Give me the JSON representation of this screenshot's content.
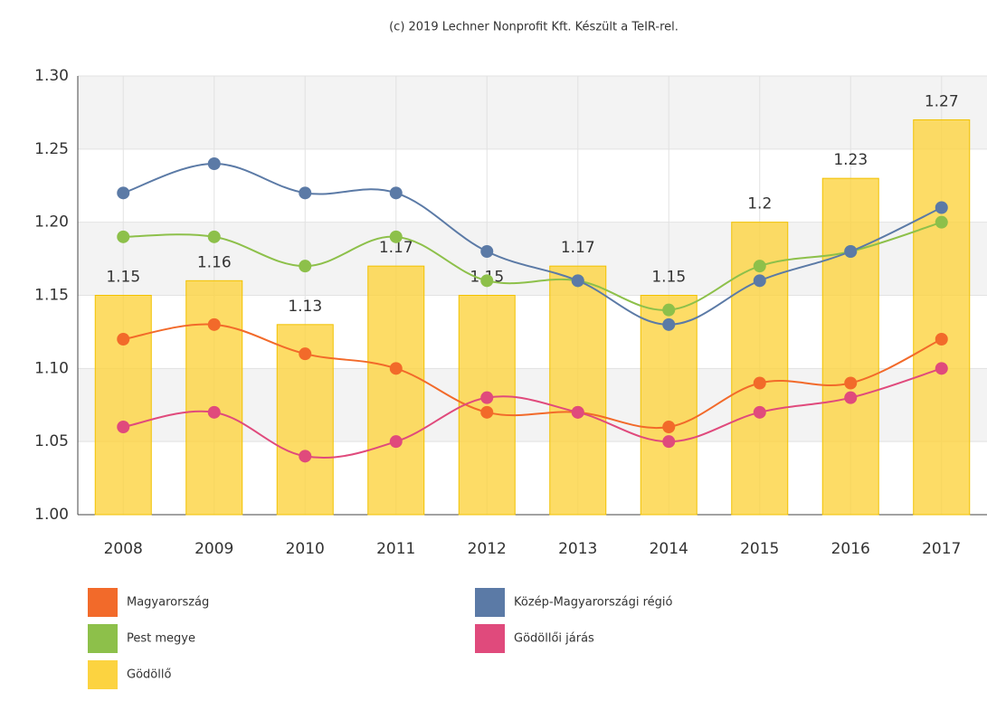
{
  "chart_data": {
    "type": "combo",
    "subtitle": "(c) 2019 Lechner Nonprofit Kft. Készült a TeIR-rel.",
    "categories": [
      "2008",
      "2009",
      "2010",
      "2011",
      "2012",
      "2013",
      "2014",
      "2015",
      "2016",
      "2017"
    ],
    "series": [
      {
        "name": "Magyarország",
        "type": "line",
        "color": "#f26a2a",
        "values": [
          1.12,
          1.13,
          1.11,
          1.1,
          1.07,
          1.07,
          1.06,
          1.09,
          1.09,
          1.12
        ]
      },
      {
        "name": "Pest megye",
        "type": "line",
        "color": "#8dc04a",
        "values": [
          1.19,
          1.19,
          1.17,
          1.19,
          1.16,
          1.16,
          1.14,
          1.17,
          1.18,
          1.2
        ]
      },
      {
        "name": "Gödöllő",
        "type": "bar",
        "color": "#fcd340",
        "values": [
          1.15,
          1.16,
          1.13,
          1.17,
          1.15,
          1.17,
          1.15,
          1.2,
          1.23,
          1.27
        ]
      },
      {
        "name": "Közép-Magyarországi régió",
        "type": "line",
        "color": "#5b7aa6",
        "values": [
          1.22,
          1.24,
          1.22,
          1.22,
          1.18,
          1.16,
          1.13,
          1.16,
          1.18,
          1.21
        ]
      },
      {
        "name": "Gödöllői járás",
        "type": "line",
        "color": "#e04a7c",
        "values": [
          1.06,
          1.07,
          1.04,
          1.05,
          1.08,
          1.07,
          1.05,
          1.07,
          1.08,
          1.1
        ]
      }
    ],
    "ylim": [
      1.0,
      1.3
    ],
    "yticks": [
      {
        "value": 1.0,
        "label": "1.00"
      },
      1.05,
      {
        "value": 1.1,
        "label": "1.10"
      },
      1.15,
      {
        "value": 1.2,
        "label": "1.20"
      },
      1.25,
      {
        "value": 1.3,
        "label": "1.30"
      }
    ],
    "grid": true
  }
}
